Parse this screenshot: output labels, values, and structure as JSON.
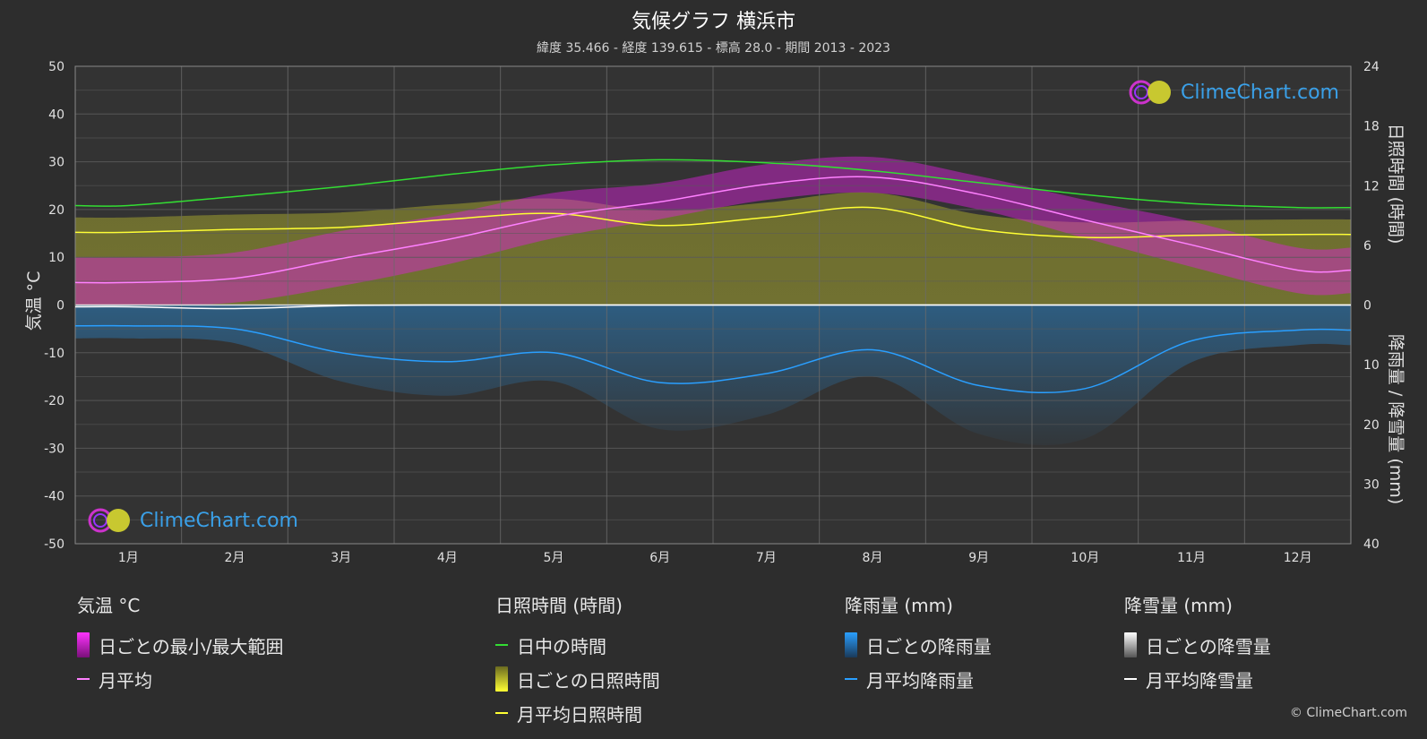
{
  "title": "気候グラフ 横浜市",
  "subtitle": "緯度 35.466 - 経度 139.615 - 標高 28.0 - 期間 2013 - 2023",
  "brand": "ClimeChart.com",
  "copyright": "© ClimeChart.com",
  "colors": {
    "background": "#2d2d2d",
    "temp_range": "#e020e0",
    "temp_avg": "#ff80ff",
    "daylight": "#33dd33",
    "sunshine": "#c8c832",
    "sunshine_avg": "#ffff33",
    "rain": "#2a8fd8",
    "rain_avg": "#2a9fff",
    "snow": "#cccccc",
    "snow_avg": "#ffffff"
  },
  "legend": {
    "temp": {
      "title": "気温 °C",
      "range_label": "日ごとの最小/最大範囲",
      "avg_label": "月平均"
    },
    "sun": {
      "title": "日照時間 (時間)",
      "daylight_label": "日中の時間",
      "daily_label": "日ごとの日照時間",
      "avg_label": "月平均日照時間"
    },
    "rain": {
      "title": "降雨量 (mm)",
      "daily_label": "日ごとの降雨量",
      "avg_label": "月平均降雨量"
    },
    "snow": {
      "title": "降雪量 (mm)",
      "daily_label": "日ごとの降雪量",
      "avg_label": "月平均降雪量"
    }
  },
  "chart_data": {
    "type": "line",
    "categories": [
      "1月",
      "2月",
      "3月",
      "4月",
      "5月",
      "6月",
      "7月",
      "8月",
      "9月",
      "10月",
      "11月",
      "12月"
    ],
    "y_left": {
      "label": "気温 °C",
      "ticks": [
        50,
        40,
        30,
        20,
        10,
        0,
        -10,
        -20,
        -30,
        -40,
        -50
      ],
      "range": [
        -50,
        50
      ]
    },
    "y_right_top": {
      "label": "日照時間 (時間)",
      "ticks": [
        24,
        18,
        12,
        6,
        0
      ],
      "range": [
        0,
        24
      ]
    },
    "y_right_bottom": {
      "label": "降雨量 / 降雪量 (mm)",
      "ticks": [
        0,
        10,
        20,
        30,
        40
      ],
      "range": [
        0,
        40
      ]
    },
    "grid": true,
    "series": [
      {
        "name": "日中の時間",
        "unit": "hours",
        "values": [
          10.0,
          10.9,
          11.9,
          13.1,
          14.1,
          14.6,
          14.3,
          13.5,
          12.3,
          11.1,
          10.2,
          9.8
        ]
      },
      {
        "name": "月平均日照時間",
        "unit": "hours",
        "values": [
          7.3,
          7.6,
          7.8,
          8.6,
          9.2,
          8.0,
          8.8,
          9.8,
          7.6,
          6.8,
          7.0,
          7.1
        ]
      },
      {
        "name": "月平均",
        "unit": "°C",
        "values": [
          4.7,
          5.6,
          9.7,
          13.7,
          18.5,
          21.6,
          25.3,
          26.8,
          23.2,
          17.8,
          12.6,
          7.3
        ]
      },
      {
        "name": "日ごとの最小/最大範囲",
        "unit": "°C",
        "min": [
          0.0,
          0.5,
          4.0,
          8.5,
          14.0,
          18.0,
          22.0,
          23.5,
          20.0,
          14.0,
          8.0,
          2.5
        ],
        "max": [
          10.0,
          11.0,
          15.5,
          19.0,
          23.5,
          25.5,
          29.5,
          31.0,
          27.0,
          22.0,
          17.5,
          12.0
        ]
      },
      {
        "name": "月平均降雨量",
        "unit": "mm",
        "values": [
          3.5,
          4.0,
          8.0,
          9.5,
          8.0,
          13.0,
          11.5,
          7.5,
          13.5,
          14.0,
          6.0,
          4.2
        ]
      },
      {
        "name": "月平均降雪量",
        "unit": "mm",
        "values": [
          0.3,
          0.6,
          0.1,
          0.0,
          0.0,
          0.0,
          0.0,
          0.0,
          0.0,
          0.0,
          0.0,
          0.0
        ]
      }
    ]
  }
}
